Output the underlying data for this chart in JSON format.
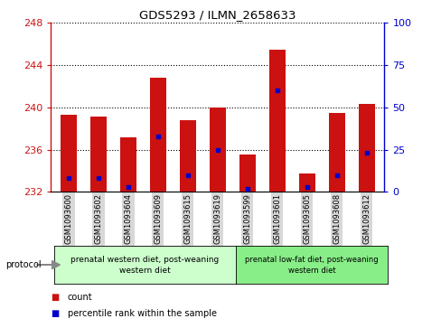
{
  "title": "GDS5293 / ILMN_2658633",
  "samples": [
    "GSM1093600",
    "GSM1093602",
    "GSM1093604",
    "GSM1093609",
    "GSM1093615",
    "GSM1093619",
    "GSM1093599",
    "GSM1093601",
    "GSM1093605",
    "GSM1093608",
    "GSM1093612"
  ],
  "count_values": [
    239.3,
    239.1,
    237.2,
    242.8,
    238.8,
    240.0,
    235.5,
    245.5,
    233.7,
    239.5,
    240.3
  ],
  "percentile_values": [
    8,
    8,
    3,
    33,
    10,
    25,
    2,
    60,
    3,
    10,
    23
  ],
  "y_min": 232,
  "y_max": 248,
  "y_ticks": [
    232,
    236,
    240,
    244,
    248
  ],
  "y2_ticks": [
    0,
    25,
    50,
    75,
    100
  ],
  "bar_color": "#cc1111",
  "percentile_color": "#0000cc",
  "bar_bottom": 232,
  "group1_label": "prenatal western diet, post-weaning\nwestern diet",
  "group2_label": "prenatal low-fat diet, post-weaning\nwestern diet",
  "group1_indices": [
    0,
    1,
    2,
    3,
    4,
    5
  ],
  "group2_indices": [
    6,
    7,
    8,
    9,
    10
  ],
  "group1_color": "#ccffcc",
  "group2_color": "#88ee88",
  "protocol_label": "protocol",
  "legend_count": "count",
  "legend_percentile": "percentile rank within the sample",
  "background_color": "#ffffff",
  "plot_bg_color": "#ffffff",
  "tick_bg_color": "#d8d8d8"
}
